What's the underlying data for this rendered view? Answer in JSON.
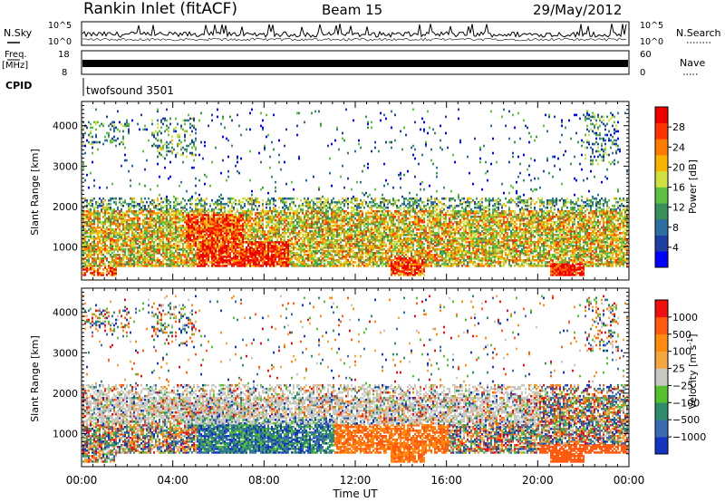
{
  "header": {
    "title": "Rankin Inlet (fitACF)",
    "beam": "Beam 15",
    "date": "29/May/2012"
  },
  "left_labels": {
    "nsky": "N.Sky",
    "freq": "Freq.",
    "mhz": "[MHz]",
    "cpid": "CPID"
  },
  "right_labels": {
    "nsearch": "N.Search",
    "nave": "Nave"
  },
  "cpid_name": "twofsound 3501",
  "chart_data": [
    {
      "type": "line",
      "name": "noise_panel",
      "left_axis": {
        "ticks": [
          "10^5",
          "10^0"
        ]
      },
      "right_axis": {
        "ticks": [
          "10^5",
          "10^0"
        ]
      }
    },
    {
      "type": "line",
      "name": "frequency_panel",
      "left_axis": {
        "ticks": [
          "18",
          "8"
        ],
        "range": [
          8,
          18
        ]
      },
      "right_axis": {
        "ticks": [
          "60",
          "0"
        ],
        "range": [
          0,
          60
        ]
      }
    },
    {
      "type": "heatmap",
      "name": "power",
      "ylabel": "Slant Range [km]",
      "ylim": [
        180,
        4600
      ],
      "yticks": [
        "1000",
        "2000",
        "3000",
        "4000"
      ],
      "xticks": [
        "00:00",
        "04:00",
        "08:00",
        "12:00",
        "16:00",
        "20:00",
        "00:00"
      ],
      "colorbar": {
        "label": "Power [dB]",
        "ticks": [
          "28",
          "24",
          "20",
          "16",
          "12",
          "8",
          "4"
        ],
        "colors": [
          "#0000ff",
          "#1e3fa0",
          "#2e6ea0",
          "#3a8f5a",
          "#5fbf40",
          "#cfe040",
          "#f6b400",
          "#ff7a00",
          "#ff3300",
          "#ee0000"
        ]
      }
    },
    {
      "type": "heatmap",
      "name": "velocity",
      "ylabel": "Slant Range [km]",
      "ylim": [
        180,
        4600
      ],
      "yticks": [
        "1000",
        "2000",
        "3000",
        "4000"
      ],
      "xticks": [
        "00:00",
        "04:00",
        "08:00",
        "12:00",
        "16:00",
        "20:00",
        "00:00"
      ],
      "colorbar": {
        "label": "Velocity [m s",
        "label_sup": "-1",
        "label_end": "]",
        "ticks": [
          "1000",
          "500",
          "100",
          "25",
          "−25",
          "−100",
          "−500",
          "−1000"
        ],
        "colors": [
          "#1535c0",
          "#3a6ab0",
          "#2f8c6a",
          "#55c030",
          "#c8c8c0",
          "#f4a640",
          "#ff8a10",
          "#ff5a10",
          "#ee1010"
        ]
      }
    }
  ],
  "xlabel": "Time UT"
}
